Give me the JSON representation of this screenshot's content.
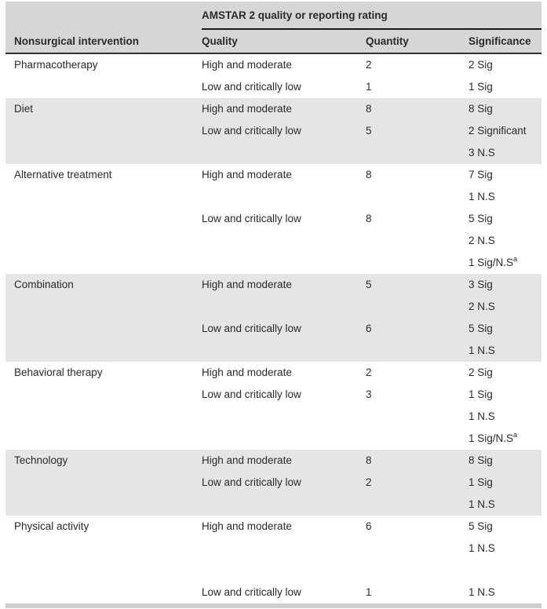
{
  "table": {
    "spanner_title": "AMSTAR 2 quality or reporting rating",
    "columns": {
      "intervention": "Nonsurgical intervention",
      "quality": "Quality",
      "quantity": "Quantity",
      "significance": "Significance"
    },
    "groups": [
      {
        "intervention": "Pharmacotherapy",
        "shaded": false,
        "rows": [
          {
            "quality": "High and moderate",
            "quantity": "2",
            "significance": "2 Sig"
          },
          {
            "quality": "Low and critically low",
            "quantity": "1",
            "significance": "1 Sig"
          }
        ]
      },
      {
        "intervention": "Diet",
        "shaded": true,
        "rows": [
          {
            "quality": "High and moderate",
            "quantity": "8",
            "significance": "8 Sig"
          },
          {
            "quality": "Low and critically low",
            "quantity": "5",
            "significance": "2 Significant"
          },
          {
            "quality": "",
            "quantity": "",
            "significance": "3 N.S"
          }
        ]
      },
      {
        "intervention": "Alternative treatment",
        "shaded": false,
        "rows": [
          {
            "quality": "High and moderate",
            "quantity": "8",
            "significance": "7 Sig"
          },
          {
            "quality": "",
            "quantity": "",
            "significance": "1 N.S"
          },
          {
            "quality": "Low and critically low",
            "quantity": "8",
            "significance": "5 Sig"
          },
          {
            "quality": "",
            "quantity": "",
            "significance": "2 N.S"
          },
          {
            "quality": "",
            "quantity": "",
            "significance": "1 Sig/N.S",
            "significance_sup": "a"
          }
        ]
      },
      {
        "intervention": "Combination",
        "shaded": true,
        "rows": [
          {
            "quality": "High and moderate",
            "quantity": "5",
            "significance": "3 Sig"
          },
          {
            "quality": "",
            "quantity": "",
            "significance": "2 N.S"
          },
          {
            "quality": "Low and critically low",
            "quantity": "6",
            "significance": "5 Sig"
          },
          {
            "quality": "",
            "quantity": "",
            "significance": "1 N.S"
          }
        ]
      },
      {
        "intervention": "Behavioral therapy",
        "shaded": false,
        "rows": [
          {
            "quality": "High and moderate",
            "quantity": "2",
            "significance": "2 Sig"
          },
          {
            "quality": "Low and critically low",
            "quantity": "3",
            "significance": "1 Sig"
          },
          {
            "quality": "",
            "quantity": "",
            "significance": "1 N.S"
          },
          {
            "quality": "",
            "quantity": "",
            "significance": "1 Sig/N.S",
            "significance_sup": "a"
          }
        ]
      },
      {
        "intervention": "Technology",
        "shaded": true,
        "rows": [
          {
            "quality": "High and moderate",
            "quantity": "8",
            "significance": "8 Sig"
          },
          {
            "quality": "Low and critically low",
            "quantity": "2",
            "significance": "1 Sig"
          },
          {
            "quality": "",
            "quantity": "",
            "significance": "1 N.S"
          }
        ]
      },
      {
        "intervention": "Physical activity",
        "shaded": false,
        "rows": [
          {
            "quality": "High and moderate",
            "quantity": "6",
            "significance": "5 Sig"
          },
          {
            "quality": "",
            "quantity": "",
            "significance": "1 N.S"
          },
          {
            "quality": "",
            "quantity": "",
            "significance": ""
          },
          {
            "quality": "Low and critically low",
            "quantity": "1",
            "significance": "1 N.S"
          }
        ]
      }
    ]
  },
  "colors": {
    "header_bg": "#d6d6d6",
    "shaded_band_bg": "#e5e5e5",
    "spanner_rule": "#1b1b1b",
    "header_rule": "#303030",
    "bottom_bar": "#cfcfcf",
    "text": "#2a2a2a"
  }
}
